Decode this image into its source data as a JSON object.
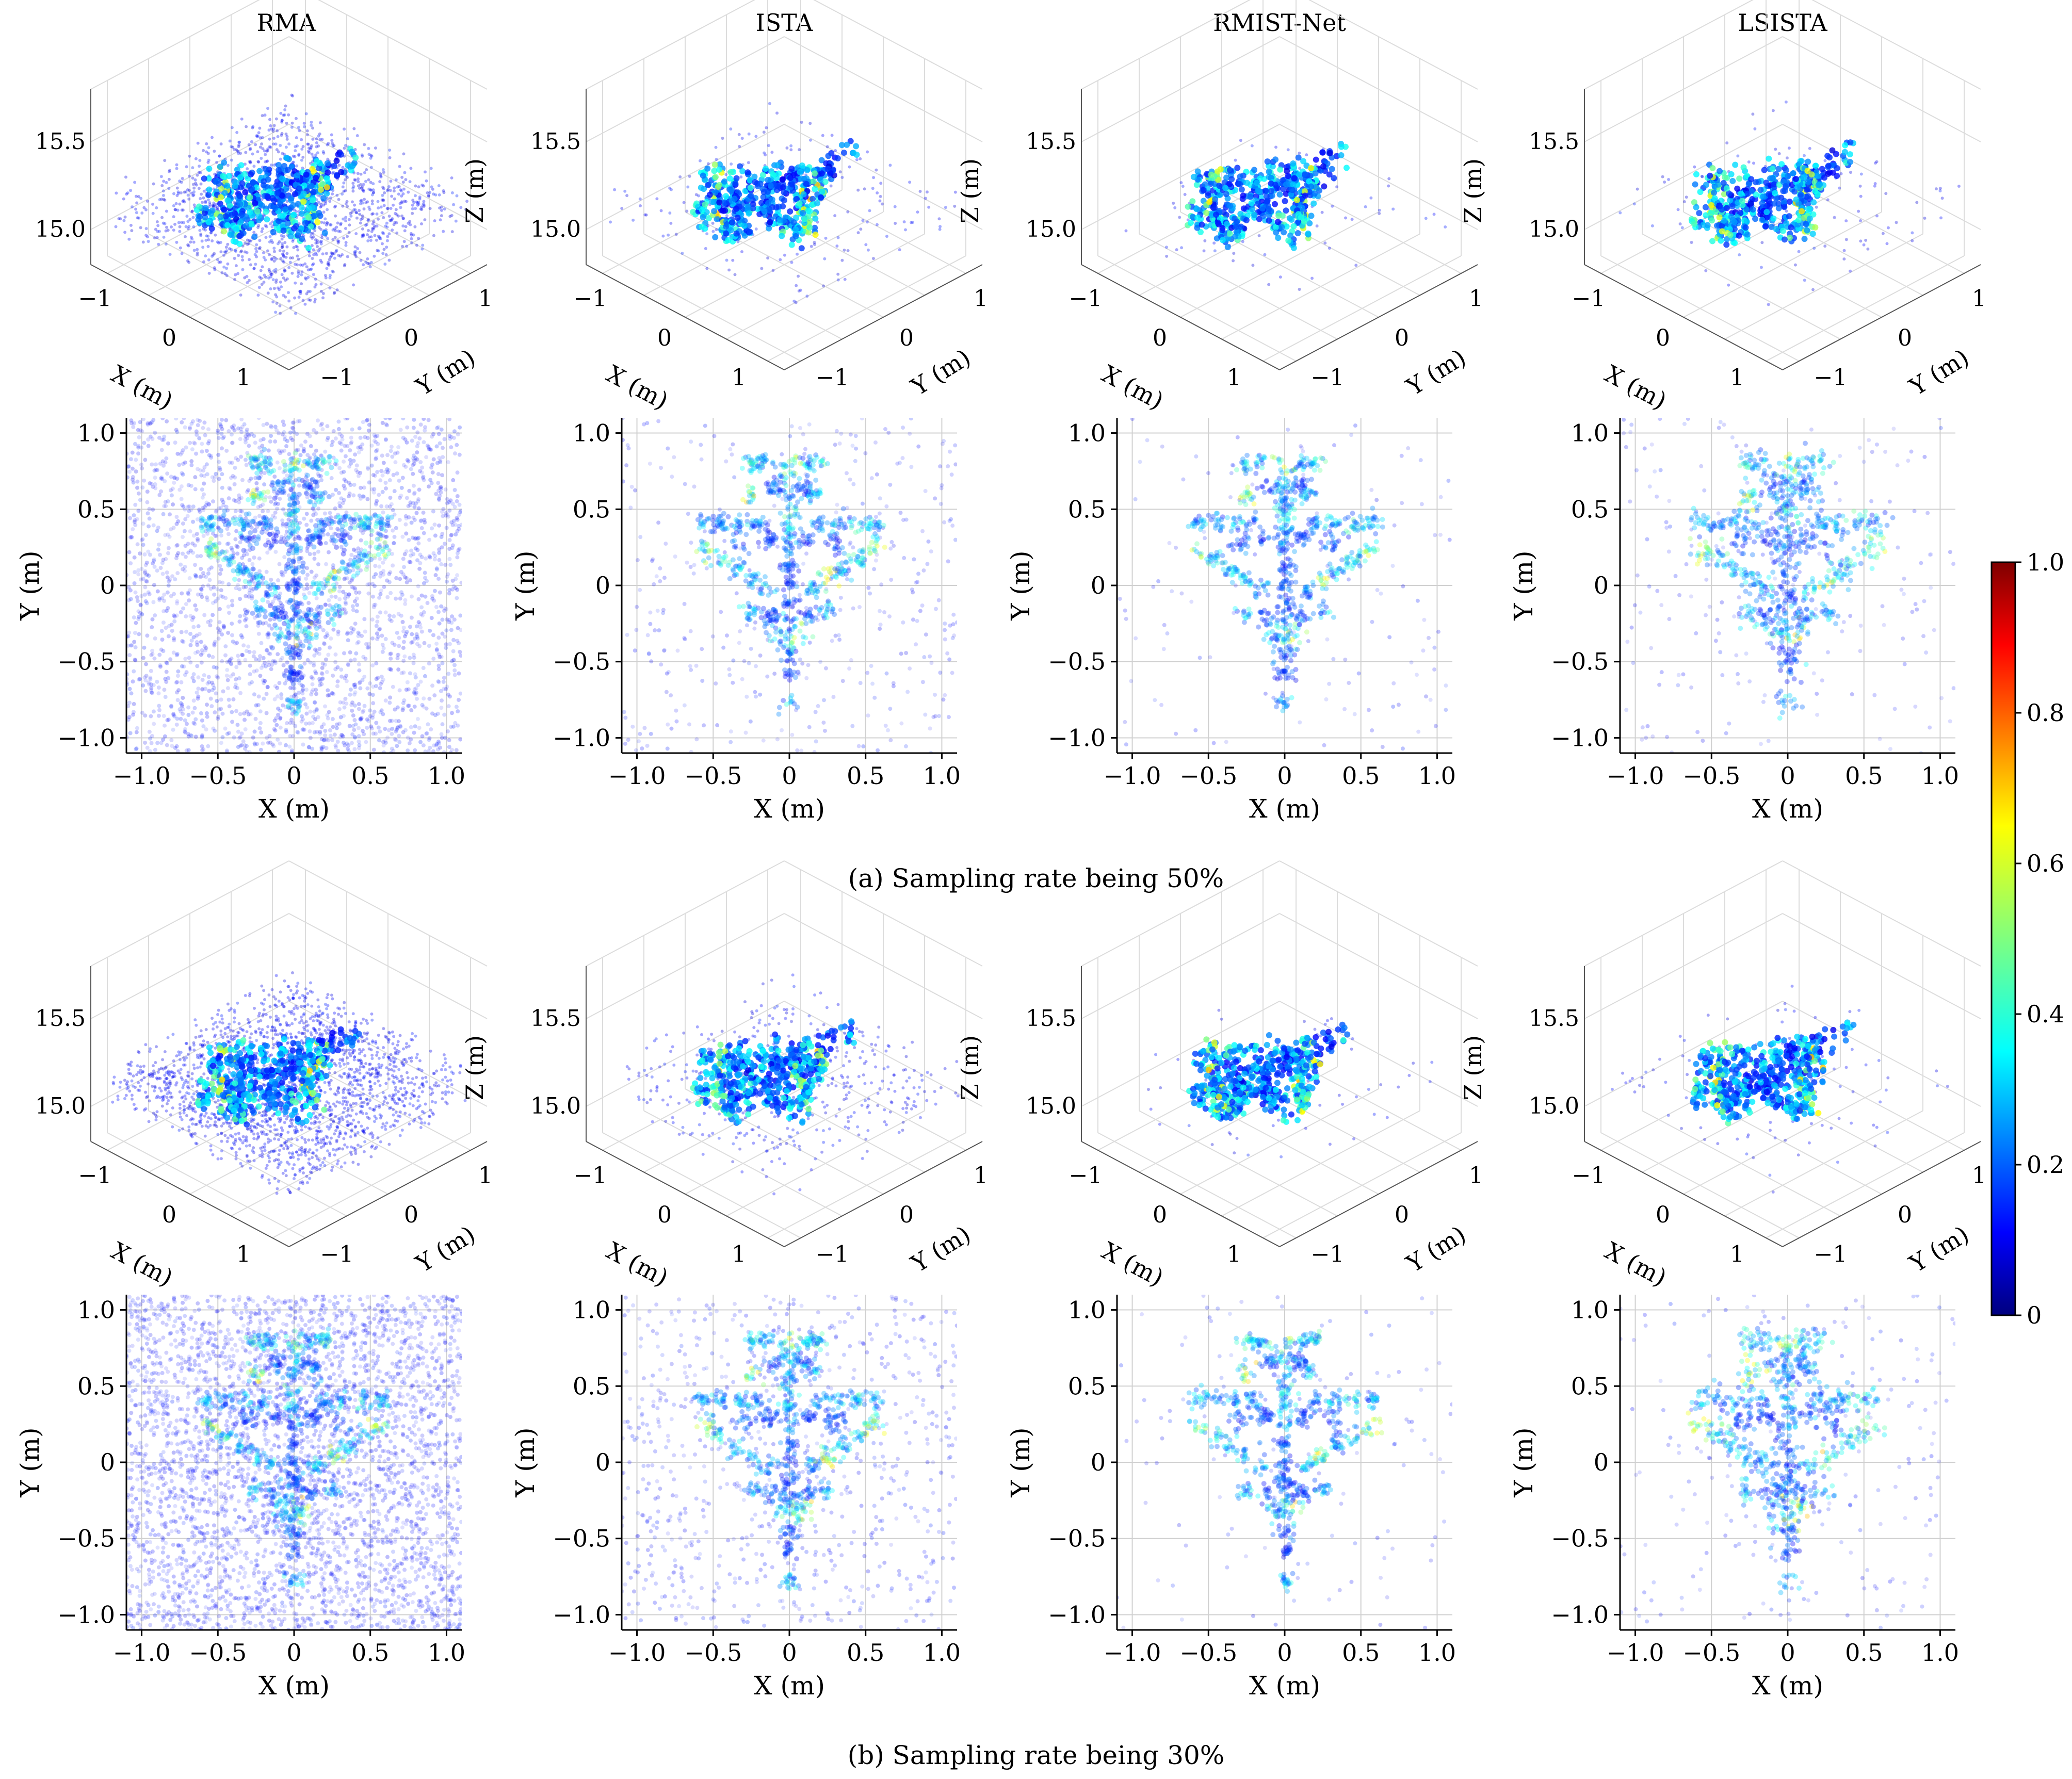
{
  "columns": [
    "RMA",
    "ISTA",
    "RMIST-Net",
    "LSISTA"
  ],
  "captions": {
    "a": "(a) Sampling rate being 50%",
    "b": "(b) Sampling rate being 30%"
  },
  "labels": {
    "x": "X (m)",
    "y": "Y (m)",
    "z": "Z (m)"
  },
  "colorbar": {
    "colormap": "jet",
    "ticks": [
      "0",
      "0.2",
      "0.4",
      "0.6",
      "0.8",
      "1.0"
    ],
    "range": [
      0,
      1
    ]
  },
  "chart_data": {
    "type": "scatter",
    "description_note": "",
    "axes_2d": {
      "x_ticks": [
        "−1.0",
        "−0.5",
        "0",
        "0.5",
        "1.0"
      ],
      "y_ticks": [
        "−1.0",
        "−0.5",
        "0",
        "0.5",
        "1.0"
      ],
      "xlim": [
        -1.1,
        1.1
      ],
      "ylim": [
        -1.1,
        1.1
      ],
      "grid": true
    },
    "axes_3d": {
      "x_ticks": [
        "−1",
        "0",
        "1"
      ],
      "y_ticks": [
        "−1",
        "0",
        "1"
      ],
      "z_ticks": [
        "15.5",
        "15.0"
      ]
    },
    "panels": [
      {
        "group": "a",
        "method": "RMA",
        "noise": 1.0
      },
      {
        "group": "a",
        "method": "ISTA",
        "noise": 0.15
      },
      {
        "group": "a",
        "method": "RMIST-Net",
        "noise": 0.05
      },
      {
        "group": "a",
        "method": "LSISTA",
        "noise": 0.08
      },
      {
        "group": "b",
        "method": "RMA",
        "noise": 1.4
      },
      {
        "group": "b",
        "method": "ISTA",
        "noise": 0.3
      },
      {
        "group": "b",
        "method": "RMIST-Net",
        "noise": 0.05
      },
      {
        "group": "b",
        "method": "LSISTA",
        "noise": 0.08
      }
    ]
  }
}
